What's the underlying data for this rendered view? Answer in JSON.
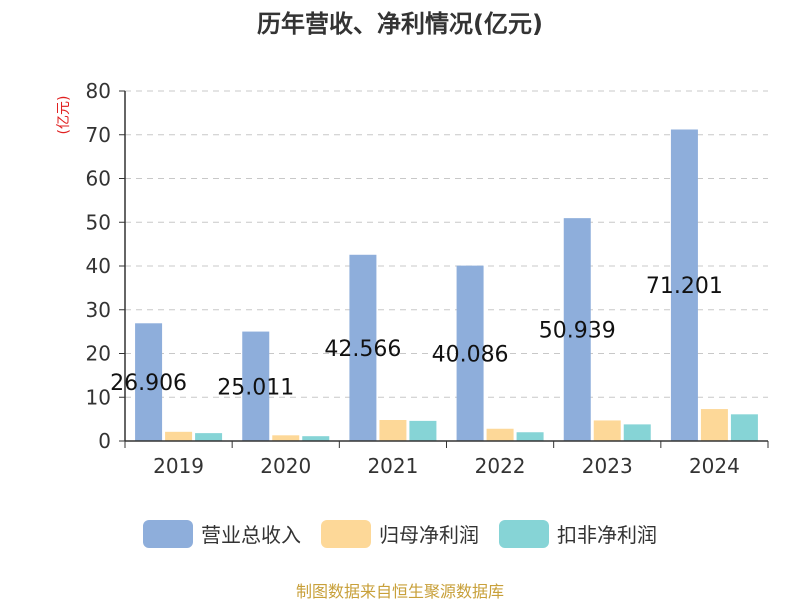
{
  "chart_data": {
    "type": "bar",
    "title": "历年营收、净利情况(亿元)",
    "ylabel": "(亿元)",
    "xlabel": "",
    "categories": [
      "2019",
      "2020",
      "2021",
      "2022",
      "2023",
      "2024"
    ],
    "ylim": [
      0,
      80
    ],
    "yticks": [
      0,
      10,
      20,
      30,
      40,
      50,
      60,
      70,
      80
    ],
    "grid": true,
    "legend_position": "bottom",
    "series": [
      {
        "name": "营业总收入",
        "color": "#8eaedb",
        "values": [
          26.906,
          25.011,
          42.566,
          40.086,
          50.939,
          71.201
        ],
        "data_labels": [
          "26.906",
          "25.011",
          "42.566",
          "40.086",
          "50.939",
          "71.201"
        ]
      },
      {
        "name": "归母净利润",
        "color": "#fdd898",
        "values": [
          2.1,
          1.3,
          4.8,
          2.8,
          4.7,
          7.3
        ]
      },
      {
        "name": "扣非净利润",
        "color": "#86d4d6",
        "values": [
          1.8,
          1.1,
          4.6,
          2.0,
          3.8,
          6.1
        ]
      }
    ]
  },
  "source_note": "制图数据来自恒生聚源数据库"
}
